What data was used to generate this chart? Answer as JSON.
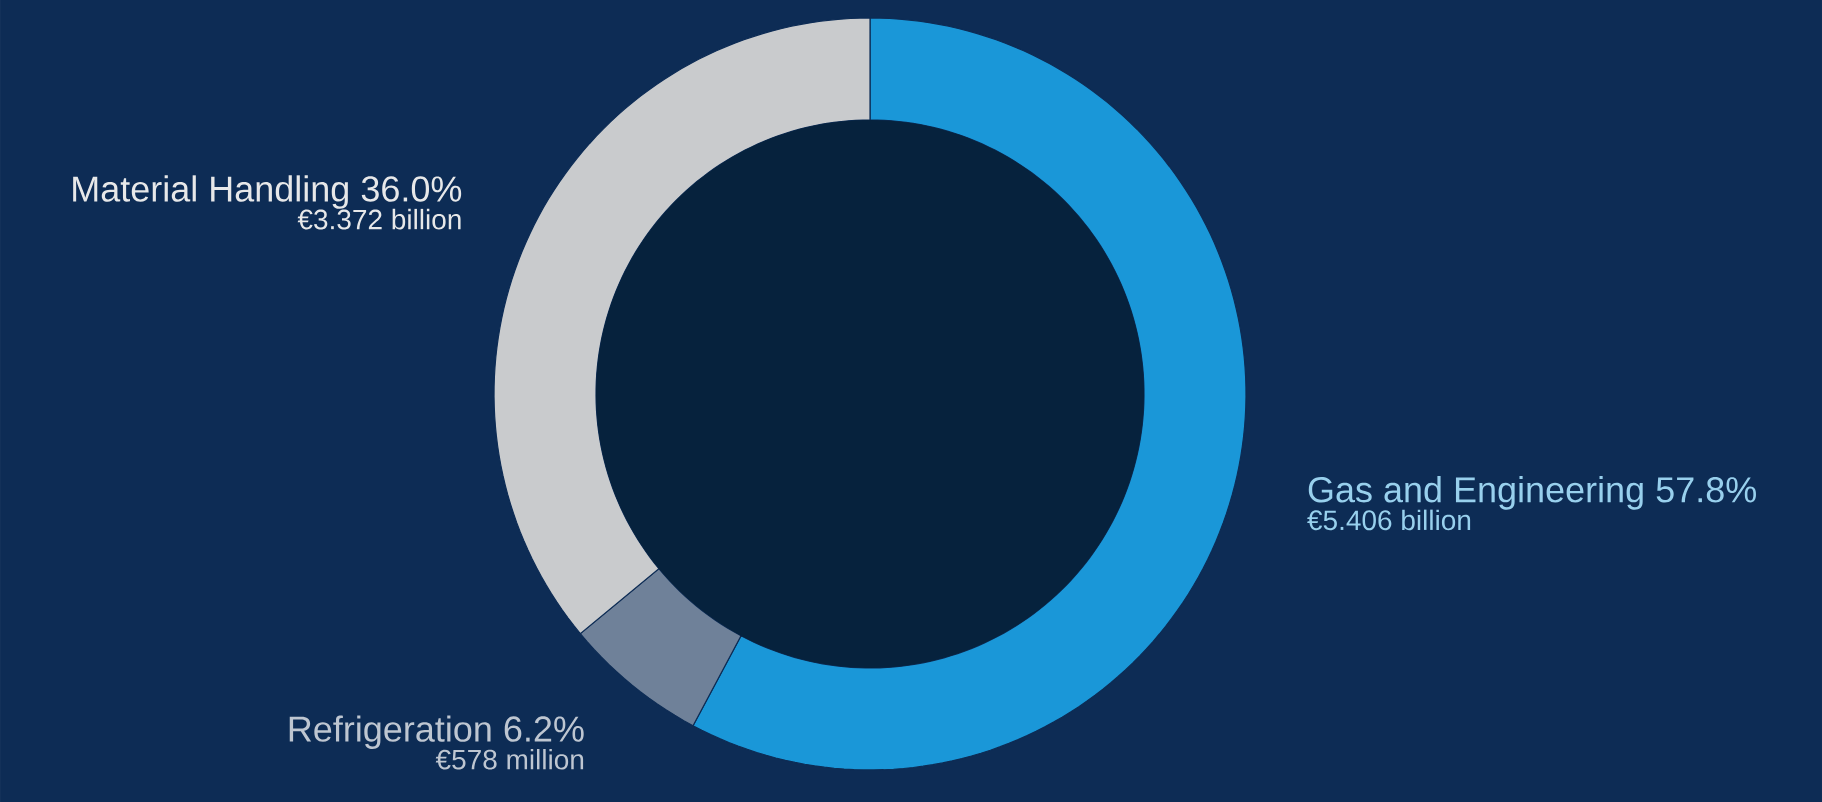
{
  "chart_data": {
    "type": "donut",
    "categories": [
      "Gas and Engineering",
      "Refrigeration",
      "Material Handling"
    ],
    "values": [
      57.8,
      6.2,
      36.0
    ],
    "value_labels": [
      "57.8%",
      "6.2%",
      "36.0%"
    ],
    "colors": [
      "#1a97d8",
      "#6f8199",
      "#c9cbcd"
    ],
    "annotations": [
      "€5.406 billion",
      "€578 million",
      "€3.372 billion"
    ]
  }
}
